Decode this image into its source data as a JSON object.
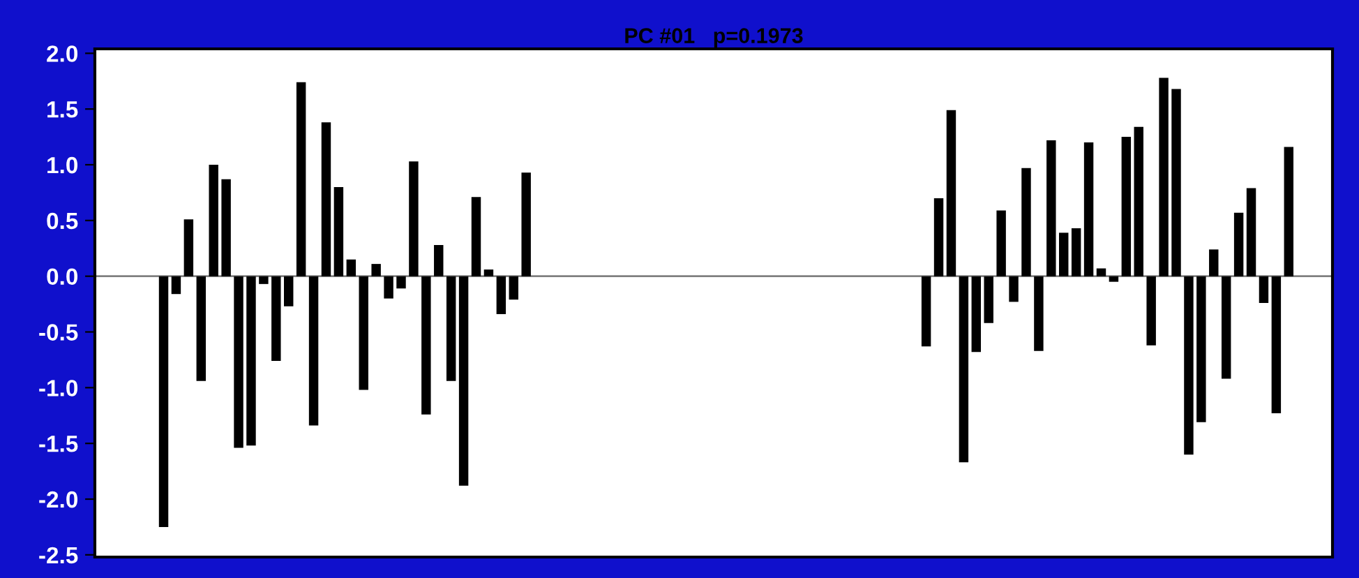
{
  "chart_data": {
    "type": "bar",
    "title": "PC #01   p=0.1973",
    "categories": [
      null,
      null,
      null,
      null,
      null,
      null,
      null,
      null,
      null,
      null,
      null,
      null,
      null,
      null,
      null,
      null,
      null,
      null,
      null,
      null,
      null,
      null,
      null,
      null,
      null,
      null,
      null,
      null,
      null,
      null,
      null,
      null,
      null,
      null,
      null,
      null,
      null,
      null,
      null,
      null,
      null,
      null,
      null,
      null,
      null,
      null,
      null,
      null,
      null,
      null,
      null,
      null,
      null,
      null,
      null,
      null,
      null,
      null,
      null,
      null,
      null,
      null,
      null,
      null,
      null,
      null,
      null,
      null,
      null,
      null,
      null,
      null,
      null,
      null,
      null,
      null,
      null,
      null,
      null,
      null,
      null,
      null,
      null,
      null,
      null,
      null,
      null,
      null,
      null,
      null,
      null,
      null,
      null,
      null,
      null,
      null,
      null,
      null,
      null
    ],
    "values": [
      null,
      null,
      null,
      null,
      null,
      -2.25,
      -0.16,
      0.51,
      -0.94,
      1.0,
      0.87,
      -1.54,
      -1.52,
      -0.07,
      -0.76,
      -0.27,
      1.74,
      -1.34,
      1.38,
      0.8,
      0.15,
      -1.02,
      0.11,
      -0.2,
      -0.11,
      1.03,
      -1.24,
      0.28,
      -0.94,
      -1.88,
      0.71,
      0.06,
      -0.34,
      -0.21,
      0.93,
      null,
      null,
      null,
      null,
      null,
      null,
      null,
      null,
      null,
      null,
      null,
      null,
      null,
      null,
      null,
      null,
      null,
      null,
      null,
      null,
      null,
      null,
      null,
      null,
      null,
      null,
      null,
      null,
      null,
      null,
      null,
      -0.63,
      0.7,
      1.49,
      -1.67,
      -0.68,
      -0.42,
      0.59,
      -0.23,
      0.97,
      -0.67,
      1.22,
      0.39,
      0.43,
      1.2,
      0.07,
      -0.05,
      1.25,
      1.34,
      -0.62,
      1.78,
      1.68,
      -1.6,
      -1.31,
      0.24,
      -0.92,
      0.57,
      0.79,
      -0.24,
      -1.23,
      1.16,
      null,
      null,
      null
    ],
    "color": "#000000",
    "ylim": [
      -2.52,
      2.04
    ],
    "yticks": [
      -2.5,
      {
        "value": -2,
        "label": "-2.0"
      },
      -1.5,
      {
        "value": -1,
        "label": "-1.0"
      },
      -0.5,
      {
        "value": 0,
        "label": "0.0"
      },
      0.5,
      {
        "value": 1,
        "label": "1.0"
      },
      1.5,
      {
        "value": 2,
        "label": "2.0"
      }
    ],
    "tick_labels": "y",
    "grid": false,
    "ref_lines": [
      {
        "axis": "y",
        "value": 0,
        "color": "#808080"
      }
    ]
  }
}
